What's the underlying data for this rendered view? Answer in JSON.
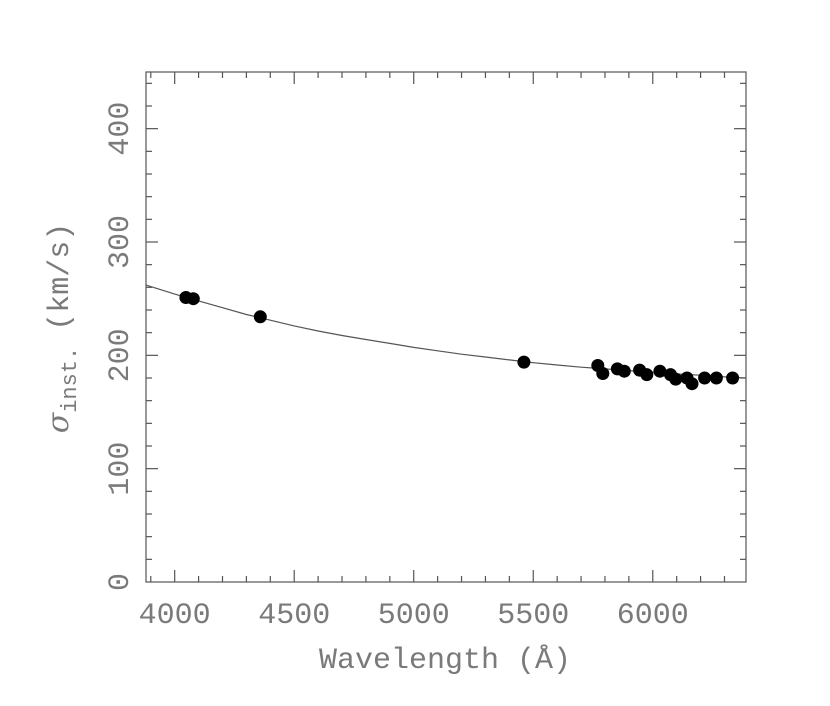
{
  "chart_data": {
    "type": "scatter",
    "title": "",
    "xlabel": "Wavelength (Å)",
    "ylabel_symbol": "σ",
    "ylabel_subscript": "inst.",
    "ylabel_units": "(km/s)",
    "xlim": [
      3880,
      6390
    ],
    "ylim": [
      0,
      450
    ],
    "x_ticks": [
      4000,
      4500,
      5000,
      5500,
      6000
    ],
    "x_tick_labels": [
      "4000",
      "4500",
      "5000",
      "5500",
      "6000"
    ],
    "y_ticks": [
      0,
      100,
      200,
      300,
      400
    ],
    "y_tick_labels": [
      "0",
      "100",
      "200",
      "300",
      "400"
    ],
    "x_minor_step": 100,
    "y_minor_step": 20,
    "grid": false,
    "series": [
      {
        "name": "measurements",
        "marker": "filled-circle",
        "x": [
          4047,
          4078,
          4358,
          5461,
          5770,
          5791,
          5852,
          5881,
          5945,
          5975,
          6030,
          6074,
          6096,
          6143,
          6164,
          6217,
          6266,
          6334
        ],
        "y": [
          251,
          250,
          234,
          194,
          191,
          184,
          188,
          186,
          187,
          183,
          186,
          183,
          179,
          180,
          175,
          180,
          180,
          180
        ]
      }
    ],
    "fit_curve": {
      "name": "fit",
      "x": [
        3880,
        4000,
        4100,
        4200,
        4300,
        4400,
        4500,
        4600,
        4700,
        4800,
        4900,
        5000,
        5100,
        5200,
        5300,
        5400,
        5500,
        5600,
        5700,
        5800,
        5900,
        6000,
        6100,
        6200,
        6300,
        6390
      ],
      "y": [
        262,
        254,
        248,
        242,
        236,
        231,
        226,
        221.5,
        217.5,
        214,
        210.5,
        207,
        204,
        201,
        198.5,
        196,
        193.5,
        191.5,
        189.5,
        188,
        186.5,
        185,
        183.5,
        182.5,
        181,
        180
      ]
    }
  }
}
